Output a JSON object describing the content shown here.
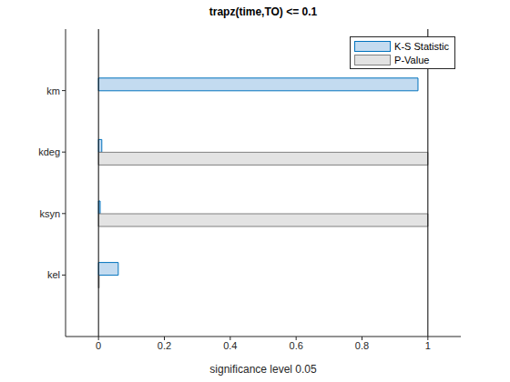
{
  "chart_data": {
    "type": "bar",
    "title": "trapz(time,TO) <= 0.1",
    "xlabel": "significance level 0.05",
    "orientation": "horizontal",
    "categories": [
      "km",
      "kdeg",
      "ksyn",
      "kel"
    ],
    "series": [
      {
        "name": "K-S Statistic",
        "color": "#c3dbf0",
        "values": [
          0.97,
          0.01,
          0.005,
          0.06
        ]
      },
      {
        "name": "P-Value",
        "color": "#e3e3e3",
        "values": [
          0,
          1,
          1,
          0.002
        ]
      }
    ],
    "xlim": [
      -0.1,
      1.1
    ],
    "xticks": [
      0,
      0.2,
      0.4,
      0.6,
      0.8,
      1
    ],
    "reference_lines": [
      0,
      1
    ],
    "grid": false,
    "legend": "top-right"
  }
}
